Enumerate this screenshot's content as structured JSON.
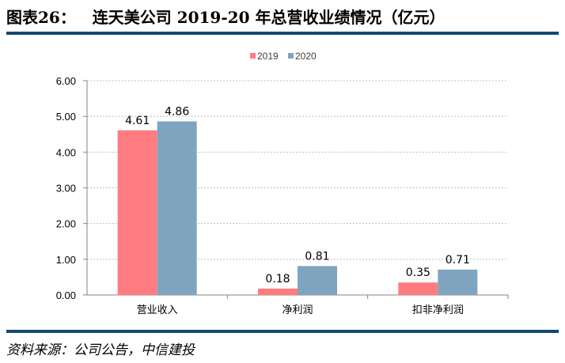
{
  "header": {
    "title": "图表26：   连天美公司 2019-20 年总营收业绩情况（亿元）"
  },
  "footer": {
    "source": "资料来源：公司公告，中信建投"
  },
  "chart_data": {
    "type": "bar",
    "categories": [
      "营业收入",
      "净利润",
      "扣非净利润"
    ],
    "series": [
      {
        "name": "2019",
        "values": [
          4.61,
          0.18,
          0.35
        ],
        "color": "#ff7c80"
      },
      {
        "name": "2020",
        "values": [
          4.86,
          0.81,
          0.71
        ],
        "color": "#7fa4c0"
      }
    ],
    "ylim": [
      0,
      6
    ],
    "yticks": [
      "0.00",
      "1.00",
      "2.00",
      "3.00",
      "4.00",
      "5.00",
      "6.00"
    ],
    "data_labels": [
      [
        "4.61",
        "0.18",
        "0.35"
      ],
      [
        "4.86",
        "0.81",
        "0.71"
      ]
    ],
    "legend": "top",
    "grid": true
  }
}
